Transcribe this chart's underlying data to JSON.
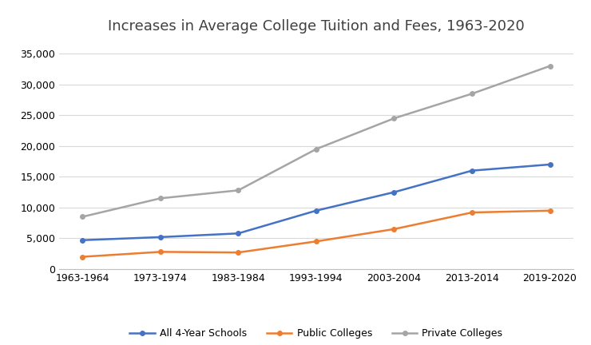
{
  "title": "Increases in Average College Tuition and Fees, 1963-2020",
  "x_labels": [
    "1963-1964",
    "1973-1974",
    "1983-1984",
    "1993-1994",
    "2003-2004",
    "2013-2014",
    "2019-2020"
  ],
  "series": [
    {
      "name": "All 4-Year Schools",
      "color": "#4472C4",
      "values": [
        4700,
        5200,
        5800,
        9500,
        12500,
        16000,
        17000
      ]
    },
    {
      "name": "Public Colleges",
      "color": "#ED7D31",
      "values": [
        2000,
        2800,
        2700,
        4500,
        6500,
        9200,
        9500
      ]
    },
    {
      "name": "Private Colleges",
      "color": "#A5A5A5",
      "values": [
        8500,
        11500,
        12800,
        19500,
        24500,
        28500,
        33000
      ]
    }
  ],
  "ylim": [
    0,
    37000
  ],
  "yticks": [
    0,
    5000,
    10000,
    15000,
    20000,
    25000,
    30000,
    35000
  ],
  "background_color": "#FFFFFF",
  "grid_color": "#D9D9D9",
  "title_fontsize": 13,
  "legend_fontsize": 9,
  "tick_fontsize": 9,
  "line_width": 1.8,
  "marker": "o",
  "marker_size": 4
}
